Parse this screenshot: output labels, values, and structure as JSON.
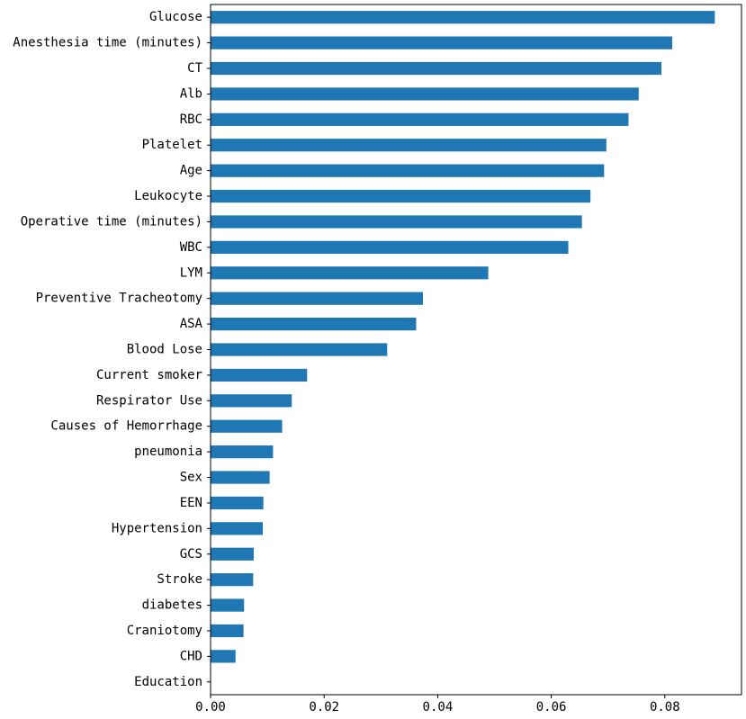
{
  "chart_data": {
    "type": "bar",
    "orientation": "horizontal",
    "title": "",
    "xlabel": "",
    "ylabel": "",
    "bar_color": "#1f77b4",
    "categories": [
      "Glucose",
      "Anesthesia time (minutes)",
      "CT",
      "Alb",
      "RBC",
      "Platelet",
      "Age",
      "Leukocyte",
      "Operative time (minutes)",
      "WBC",
      "LYM",
      "Preventive Tracheotomy",
      "ASA",
      "Blood Lose",
      "Current smoker",
      "Respirator Use",
      "Causes of Hemorrhage",
      "pneumonia",
      "Sex",
      "EEN",
      "Hypertension",
      "GCS",
      "Stroke",
      "diabetes",
      "Craniotomy",
      "CHD",
      "Education"
    ],
    "values": [
      0.0888,
      0.0813,
      0.0794,
      0.0754,
      0.0736,
      0.0697,
      0.0693,
      0.0669,
      0.0654,
      0.063,
      0.0489,
      0.0374,
      0.0362,
      0.0311,
      0.017,
      0.0143,
      0.0126,
      0.011,
      0.0104,
      0.0093,
      0.0092,
      0.0076,
      0.0075,
      0.0059,
      0.0058,
      0.0044,
      0.0
    ],
    "xlim": [
      0,
      0.0935
    ],
    "xticks": [
      0.0,
      0.02,
      0.04,
      0.06,
      0.08
    ],
    "xtick_labels": [
      "0.00",
      "0.02",
      "0.04",
      "0.06",
      "0.08"
    ],
    "grid": false,
    "legend": "none"
  }
}
